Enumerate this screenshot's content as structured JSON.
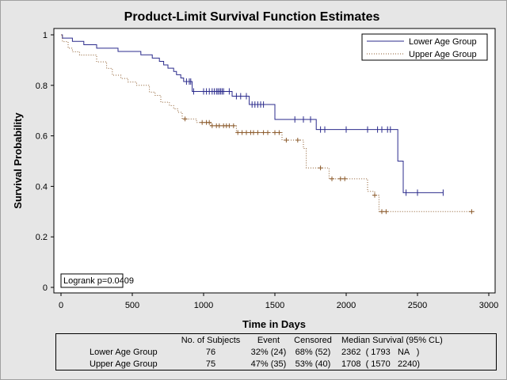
{
  "colors": {
    "background": "#e6e6e6",
    "lower": "#2b2b8c",
    "upper": "#8b5a2b"
  },
  "chart_data": {
    "type": "line",
    "title": "Product-Limit Survival Function Estimates",
    "xlabel": "Time in Days",
    "ylabel": "Survival Probability",
    "xlim": [
      0,
      3000
    ],
    "ylim": [
      0,
      1
    ],
    "xticks": [
      0,
      500,
      1000,
      1500,
      2000,
      2500,
      3000
    ],
    "yticks": [
      0,
      0.2,
      0.4,
      0.6,
      0.8,
      1
    ],
    "ytick_labels": [
      "0",
      "0.2",
      "0.4",
      "0.6",
      "0.8",
      "1"
    ],
    "legend_position": "top-right",
    "annotation": "Logrank p=0.0409",
    "series": [
      {
        "name": "Lower Age Group",
        "style": "solid",
        "steps": [
          [
            0,
            1
          ],
          [
            10,
            0.987
          ],
          [
            80,
            0.974
          ],
          [
            160,
            0.961
          ],
          [
            250,
            0.947
          ],
          [
            400,
            0.934
          ],
          [
            560,
            0.921
          ],
          [
            640,
            0.908
          ],
          [
            690,
            0.895
          ],
          [
            720,
            0.881
          ],
          [
            750,
            0.868
          ],
          [
            790,
            0.855
          ],
          [
            810,
            0.842
          ],
          [
            840,
            0.829
          ],
          [
            860,
            0.815
          ],
          [
            920,
            0.776
          ],
          [
            1100,
            0.776
          ],
          [
            1200,
            0.757
          ],
          [
            1320,
            0.724
          ],
          [
            1500,
            0.665
          ],
          [
            1790,
            0.625
          ],
          [
            2362,
            0.5
          ],
          [
            2400,
            0.375
          ],
          [
            2680,
            0.375
          ]
        ],
        "censored": [
          880,
          900,
          910,
          930,
          1000,
          1020,
          1040,
          1060,
          1075,
          1090,
          1100,
          1110,
          1120,
          1130,
          1140,
          1180,
          1230,
          1260,
          1300,
          1340,
          1360,
          1380,
          1400,
          1420,
          1640,
          1700,
          1750,
          1820,
          1850,
          2000,
          2150,
          2220,
          2250,
          2290,
          2310,
          2420,
          2500,
          2680
        ]
      },
      {
        "name": "Upper Age Group",
        "style": "dotted",
        "steps": [
          [
            0,
            1
          ],
          [
            10,
            0.973
          ],
          [
            50,
            0.947
          ],
          [
            80,
            0.933
          ],
          [
            130,
            0.92
          ],
          [
            250,
            0.893
          ],
          [
            320,
            0.867
          ],
          [
            360,
            0.84
          ],
          [
            420,
            0.827
          ],
          [
            470,
            0.813
          ],
          [
            530,
            0.8
          ],
          [
            620,
            0.773
          ],
          [
            660,
            0.76
          ],
          [
            700,
            0.733
          ],
          [
            760,
            0.72
          ],
          [
            790,
            0.707
          ],
          [
            820,
            0.693
          ],
          [
            850,
            0.667
          ],
          [
            950,
            0.653
          ],
          [
            1050,
            0.64
          ],
          [
            1120,
            0.64
          ],
          [
            1230,
            0.613
          ],
          [
            1520,
            0.613
          ],
          [
            1550,
            0.583
          ],
          [
            1700,
            0.55
          ],
          [
            1720,
            0.473
          ],
          [
            1880,
            0.43
          ],
          [
            2150,
            0.38
          ],
          [
            2200,
            0.365
          ],
          [
            2230,
            0.3
          ],
          [
            2900,
            0.3
          ]
        ],
        "censored": [
          870,
          990,
          1020,
          1040,
          1060,
          1090,
          1110,
          1140,
          1160,
          1180,
          1210,
          1240,
          1270,
          1300,
          1330,
          1350,
          1380,
          1420,
          1450,
          1500,
          1530,
          1580,
          1660,
          1820,
          1900,
          1960,
          1990,
          2200,
          2250,
          2280,
          2880
        ]
      }
    ],
    "summary_table": {
      "headers": [
        "",
        "No. of Subjects",
        "Event",
        "Censored",
        "Median Survival (95% CL)"
      ],
      "rows": [
        {
          "group": "Lower Age Group",
          "subjects": "76",
          "event": "32% (24)",
          "censored": "68% (52)",
          "median": "2362  ( 1793   NA   )"
        },
        {
          "group": "Upper Age Group",
          "subjects": "75",
          "event": "47% (35)",
          "censored": "53% (40)",
          "median": "1708  ( 1570   2240)"
        }
      ]
    }
  }
}
